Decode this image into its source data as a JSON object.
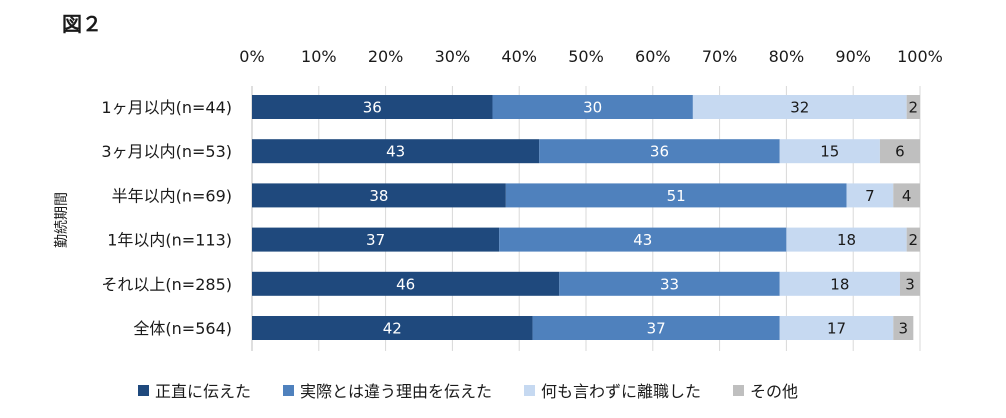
{
  "figure_label": "図２",
  "chart_data": {
    "type": "bar",
    "orientation": "horizontal",
    "stacked": true,
    "ylabel": "勤続期間",
    "xlabel": "",
    "xlim": [
      0,
      100
    ],
    "x_ticks": [
      "0%",
      "10%",
      "20%",
      "30%",
      "40%",
      "50%",
      "60%",
      "70%",
      "80%",
      "90%",
      "100%"
    ],
    "grid": true,
    "legend_position": "bottom",
    "categories": [
      "1ヶ月以内(n=44)",
      "3ヶ月以内(n=53)",
      "半年以内(n=69)",
      "1年以内(n=113)",
      "それ以上(n=285)",
      "全体(n=564)"
    ],
    "series": [
      {
        "name": "正直に伝えた",
        "color": "#1f497d",
        "label_color": "#ffffff",
        "values": [
          36,
          43,
          38,
          37,
          46,
          42
        ]
      },
      {
        "name": "実際とは違う理由を伝えた",
        "color": "#4f81bd",
        "label_color": "#ffffff",
        "values": [
          30,
          36,
          51,
          43,
          33,
          37
        ]
      },
      {
        "name": "何も言わずに離職した",
        "color": "#c6d9f1",
        "label_color": "#1a1a1a",
        "values": [
          32,
          15,
          7,
          18,
          18,
          17
        ]
      },
      {
        "name": "その他",
        "color": "#bfbfbf",
        "label_color": "#1a1a1a",
        "values": [
          2,
          6,
          4,
          2,
          3,
          3
        ]
      }
    ]
  }
}
